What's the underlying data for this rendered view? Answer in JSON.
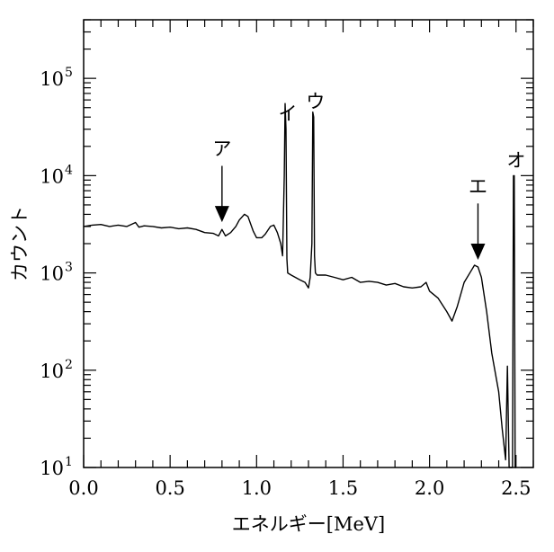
{
  "chart_data": {
    "type": "line",
    "title": "",
    "xlabel": "エネルギー[MeV]",
    "ylabel": "カウント",
    "xlim": [
      0.0,
      2.6
    ],
    "ylim": [
      10,
      400000
    ],
    "yscale": "log",
    "grid": false,
    "legend": "none",
    "line_color": "#000000",
    "x_tick_labels": [
      "0.0",
      "0.5",
      "1.0",
      "1.5",
      "2.0",
      "2.5"
    ],
    "y_tick_labels": [
      {
        "value": 10,
        "base": "10",
        "exp": "1"
      },
      {
        "value": 100,
        "base": "10",
        "exp": "2"
      },
      {
        "value": 1000,
        "base": "10",
        "exp": "3"
      },
      {
        "value": 10000,
        "base": "10",
        "exp": "4"
      },
      {
        "value": 100000,
        "base": "10",
        "exp": "5"
      }
    ],
    "annotations": [
      {
        "label": "ア",
        "x": 0.8,
        "arrow": true
      },
      {
        "label": "イ",
        "x": 1.17,
        "arrow": false
      },
      {
        "label": "ウ",
        "x": 1.33,
        "arrow": false
      },
      {
        "label": "エ",
        "x": 2.28,
        "arrow": true
      },
      {
        "label": "オ",
        "x": 2.49,
        "arrow": false
      }
    ],
    "series": [
      {
        "x": [
          0.0,
          0.05,
          0.1,
          0.15,
          0.2,
          0.25,
          0.3,
          0.32,
          0.35,
          0.4,
          0.45,
          0.5,
          0.55,
          0.6,
          0.65,
          0.7,
          0.75,
          0.78,
          0.8,
          0.82,
          0.85,
          0.88,
          0.9,
          0.93,
          0.95,
          0.98,
          1.0,
          1.03,
          1.05,
          1.08,
          1.1,
          1.12,
          1.14,
          1.15,
          1.16,
          1.165,
          1.17,
          1.175,
          1.18,
          1.2,
          1.25,
          1.28,
          1.3,
          1.31,
          1.32,
          1.325,
          1.33,
          1.335,
          1.34,
          1.35,
          1.4,
          1.45,
          1.5,
          1.55,
          1.6,
          1.65,
          1.7,
          1.75,
          1.8,
          1.85,
          1.9,
          1.95,
          1.98,
          2.0,
          2.05,
          2.1,
          2.13,
          2.16,
          2.2,
          2.24,
          2.26,
          2.28,
          2.3,
          2.33,
          2.36,
          2.4,
          2.42,
          2.44,
          2.45,
          2.46,
          2.47,
          2.48,
          2.485,
          2.49,
          2.495,
          2.5
        ],
        "y": [
          3000,
          3100,
          3150,
          3000,
          3100,
          3000,
          3300,
          2950,
          3050,
          3000,
          2900,
          2950,
          2850,
          2900,
          2800,
          2600,
          2550,
          2400,
          2800,
          2400,
          2600,
          3000,
          3500,
          4000,
          3800,
          2700,
          2300,
          2300,
          2500,
          3000,
          3100,
          2600,
          2000,
          1500,
          10000,
          55000,
          30000,
          1400,
          1000,
          950,
          850,
          800,
          700,
          900,
          2000,
          45000,
          40000,
          1500,
          1000,
          950,
          950,
          900,
          850,
          900,
          800,
          820,
          800,
          750,
          780,
          720,
          700,
          720,
          800,
          650,
          550,
          400,
          320,
          450,
          800,
          1050,
          1200,
          1150,
          900,
          400,
          150,
          60,
          25,
          12,
          110,
          10,
          10,
          10,
          10000,
          10000,
          10,
          10
        ]
      }
    ]
  }
}
